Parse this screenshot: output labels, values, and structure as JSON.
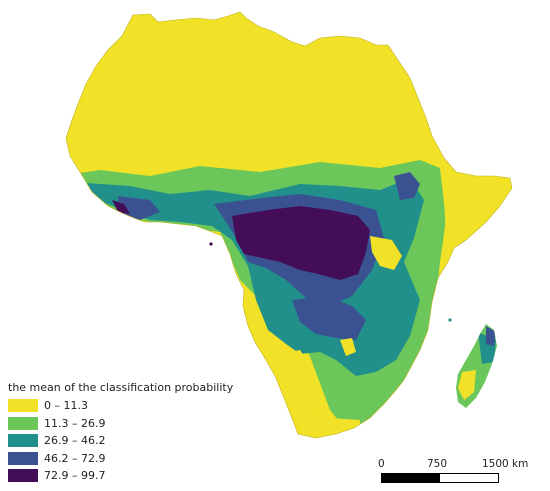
{
  "legend": {
    "title": "the mean of the classification probability",
    "classes": [
      {
        "label": "0 – 11.3",
        "color": "#f2e227"
      },
      {
        "label": "11.3 – 26.9",
        "color": "#6cc75a"
      },
      {
        "label": "26.9 – 46.2",
        "color": "#22908a"
      },
      {
        "label": "46.2 – 72.9",
        "color": "#3b5292"
      },
      {
        "label": "72.9 – 99.7",
        "color": "#430d57"
      }
    ]
  },
  "scale_bar": {
    "labels": [
      "0",
      "750",
      "1500 km"
    ],
    "colors": [
      "#000000",
      "#ffffff"
    ]
  }
}
